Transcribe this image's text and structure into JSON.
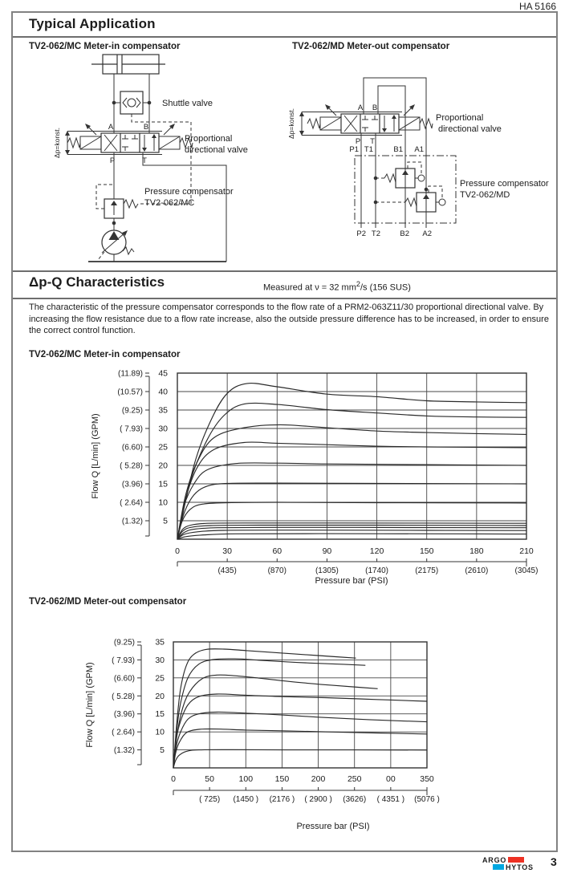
{
  "header": {
    "doc_number": "HA 5166"
  },
  "colors": {
    "logo_red": "#ee3124",
    "logo_blue": "#00a7e1",
    "frame_gray": "#828282"
  },
  "sections": {
    "typical": {
      "title": "Typical Application",
      "left": {
        "title": "TV2-062/MC Meter-in compensator",
        "labels": {
          "shuttle": "Shuttle valve",
          "prop1": "Proportional",
          "prop2": "directional valve",
          "comp1": "Pressure compensator",
          "comp2": "TV2-062/MC",
          "dp": "Δp=konst.",
          "a": "A",
          "b": "B",
          "p": "P",
          "t": "T"
        }
      },
      "right": {
        "title": "TV2-062/MD Meter-out compensator",
        "labels": {
          "prop1": "Proportional",
          "prop2": "directional valve",
          "comp1": "Pressure compensator",
          "comp2": "TV2-062/MD",
          "dp": "Δp=konst.",
          "a": "A",
          "b": "B",
          "p": "P",
          "t": "T",
          "p1": "P1",
          "t1": "T1",
          "b1": "B1",
          "a1": "A1",
          "p2": "P2",
          "t2": "T2",
          "b2": "B2",
          "a2": "A2"
        }
      }
    },
    "characteristics": {
      "title": "Δp-Q Characteristics",
      "measured_prefix": "Measured at ν = 32 mm",
      "measured_sup": "2",
      "measured_suffix": "/s (156 SUS)",
      "paragraph": "The characteristic of the pressure compensator corresponds to the flow rate of a PRM2-063Z11/30 proportional directional valve. By increasing the flow resistance due to a flow rate increase, also the outside pressure difference has to be increased, in order to ensure the correct control function."
    }
  },
  "chart_data": [
    {
      "type": "line",
      "title": "TV2-062/MC Meter-in compensator",
      "xlabel": "Pressure bar (PSI)",
      "ylabel": "Flow Q  [L/min]  (GPM)",
      "xlim": [
        0,
        210
      ],
      "ylim": [
        0,
        45
      ],
      "grid": true,
      "x_ticks": [
        {
          "v": 0,
          "label": "0"
        },
        {
          "v": 30,
          "label": "30"
        },
        {
          "v": 60,
          "label": "60"
        },
        {
          "v": 90,
          "label": "90"
        },
        {
          "v": 120,
          "label": "120"
        },
        {
          "v": 150,
          "label": "150"
        },
        {
          "v": 180,
          "label": "180"
        },
        {
          "v": 210,
          "label": "210"
        }
      ],
      "psi_ticks": [
        {
          "v": 30,
          "label": "(435)"
        },
        {
          "v": 60,
          "label": "(870)"
        },
        {
          "v": 90,
          "label": "(1305)"
        },
        {
          "v": 120,
          "label": "(1740)"
        },
        {
          "v": 150,
          "label": "(2175)"
        },
        {
          "v": 180,
          "label": "(2610)"
        },
        {
          "v": 210,
          "label": "(3045)"
        }
      ],
      "y_ticks": [
        {
          "v": 5,
          "label": "5",
          "gpm": "(1.32)"
        },
        {
          "v": 10,
          "label": "10",
          "gpm": "( 2.64)"
        },
        {
          "v": 15,
          "label": "15",
          "gpm": "(3.96)"
        },
        {
          "v": 20,
          "label": "20",
          "gpm": "( 5.28)"
        },
        {
          "v": 25,
          "label": "25",
          "gpm": "(6.60)"
        },
        {
          "v": 30,
          "label": "30",
          "gpm": "( 7.93)"
        },
        {
          "v": 35,
          "label": "35",
          "gpm": "(9.25)"
        },
        {
          "v": 40,
          "label": "40",
          "gpm": "(10.57)"
        },
        {
          "v": 45,
          "label": "45",
          "gpm": "(11.89)"
        }
      ],
      "series": [
        {
          "name": "curve-1",
          "points": [
            [
              0,
              0
            ],
            [
              10,
              20
            ],
            [
              20,
              32
            ],
            [
              30,
              39.5
            ],
            [
              42,
              42.2
            ],
            [
              60,
              41.3
            ],
            [
              90,
              39.3
            ],
            [
              120,
              38.6
            ],
            [
              150,
              37.5
            ],
            [
              180,
              37.2
            ],
            [
              210,
              37
            ]
          ]
        },
        {
          "name": "curve-2",
          "points": [
            [
              0,
              0
            ],
            [
              8,
              16
            ],
            [
              18,
              27
            ],
            [
              28,
              33.5
            ],
            [
              40,
              36.6
            ],
            [
              60,
              36.5
            ],
            [
              90,
              35.1
            ],
            [
              120,
              34.2
            ],
            [
              150,
              33.4
            ],
            [
              180,
              33.1
            ],
            [
              210,
              33
            ]
          ]
        },
        {
          "name": "curve-3",
          "points": [
            [
              0,
              0
            ],
            [
              5,
              12
            ],
            [
              12,
              21
            ],
            [
              22,
              27.5
            ],
            [
              40,
              30.2
            ],
            [
              62,
              31
            ],
            [
              90,
              30.2
            ],
            [
              120,
              29.3
            ],
            [
              150,
              28.9
            ],
            [
              180,
              28.6
            ],
            [
              210,
              28.4
            ]
          ]
        },
        {
          "name": "curve-4",
          "points": [
            [
              0,
              0
            ],
            [
              5,
              11
            ],
            [
              12,
              19.5
            ],
            [
              22,
              24.3
            ],
            [
              40,
              26.2
            ],
            [
              60,
              26
            ],
            [
              90,
              25.6
            ],
            [
              120,
              25.2
            ],
            [
              150,
              25
            ],
            [
              210,
              24.8
            ]
          ]
        },
        {
          "name": "curve-5",
          "points": [
            [
              0,
              0
            ],
            [
              4,
              9
            ],
            [
              10,
              15
            ],
            [
              18,
              18.8
            ],
            [
              35,
              20.5
            ],
            [
              60,
              20.6
            ],
            [
              90,
              20.4
            ],
            [
              150,
              20.2
            ],
            [
              210,
              20
            ]
          ]
        },
        {
          "name": "curve-6",
          "points": [
            [
              0,
              0
            ],
            [
              4,
              7
            ],
            [
              10,
              12
            ],
            [
              18,
              14.4
            ],
            [
              30,
              15.1
            ],
            [
              60,
              15.2
            ],
            [
              120,
              15.1
            ],
            [
              210,
              15
            ]
          ]
        },
        {
          "name": "curve-7",
          "points": [
            [
              0,
              0
            ],
            [
              3,
              5
            ],
            [
              8,
              8.2
            ],
            [
              15,
              9.5
            ],
            [
              30,
              9.9
            ],
            [
              60,
              10
            ],
            [
              120,
              9.9
            ],
            [
              210,
              9.8
            ]
          ]
        },
        {
          "name": "curve-8",
          "points": [
            [
              0,
              0
            ],
            [
              3,
              2.6
            ],
            [
              8,
              3.8
            ],
            [
              18,
              4.3
            ],
            [
              40,
              4.4
            ],
            [
              100,
              4.4
            ],
            [
              210,
              4.3
            ]
          ]
        },
        {
          "name": "curve-9",
          "points": [
            [
              0,
              0
            ],
            [
              3,
              2.1
            ],
            [
              8,
              3.2
            ],
            [
              20,
              3.7
            ],
            [
              50,
              3.8
            ],
            [
              120,
              3.8
            ],
            [
              210,
              3.7
            ]
          ]
        },
        {
          "name": "curve-10",
          "points": [
            [
              0,
              0
            ],
            [
              4,
              1.8
            ],
            [
              10,
              2.7
            ],
            [
              24,
              3.1
            ],
            [
              60,
              3.2
            ],
            [
              140,
              3.15
            ],
            [
              210,
              3.1
            ]
          ]
        },
        {
          "name": "curve-11",
          "points": [
            [
              0,
              0
            ],
            [
              4,
              1.3
            ],
            [
              12,
              2
            ],
            [
              28,
              2.4
            ],
            [
              70,
              2.45
            ],
            [
              150,
              2.4
            ],
            [
              210,
              2.35
            ]
          ]
        },
        {
          "name": "curve-12",
          "points": [
            [
              0,
              0
            ],
            [
              5,
              0.7
            ],
            [
              14,
              1.1
            ],
            [
              35,
              1.45
            ],
            [
              90,
              1.5
            ],
            [
              160,
              1.45
            ],
            [
              210,
              1.4
            ]
          ]
        }
      ]
    },
    {
      "type": "line",
      "title": "TV2-062/MD Meter-out compensator",
      "xlabel": "Pressure bar (PSI)",
      "ylabel": "Flow Q  [L/min]  (GPM)",
      "xlim": [
        0,
        350
      ],
      "ylim": [
        0,
        35
      ],
      "grid": true,
      "x_ticks": [
        {
          "v": 0,
          "label": "0"
        },
        {
          "v": 50,
          "label": "50"
        },
        {
          "v": 100,
          "label": "100"
        },
        {
          "v": 150,
          "label": "150"
        },
        {
          "v": 200,
          "label": "200"
        },
        {
          "v": 250,
          "label": "250"
        },
        {
          "v": 300,
          "label": "00"
        },
        {
          "v": 350,
          "label": "350"
        }
      ],
      "psi_ticks": [
        {
          "v": 50,
          "label": "( 725)"
        },
        {
          "v": 100,
          "label": "(1450 )"
        },
        {
          "v": 150,
          "label": "(2176 )"
        },
        {
          "v": 200,
          "label": "( 2900 )"
        },
        {
          "v": 250,
          "label": "(3626)"
        },
        {
          "v": 300,
          "label": "( 4351 )"
        },
        {
          "v": 350,
          "label": "(5076 )"
        }
      ],
      "y_ticks": [
        {
          "v": 5,
          "label": "5",
          "gpm": "(1.32)"
        },
        {
          "v": 10,
          "label": "10",
          "gpm": "( 2.64)"
        },
        {
          "v": 15,
          "label": "15",
          "gpm": "(3.96)"
        },
        {
          "v": 20,
          "label": "20",
          "gpm": "( 5.28)"
        },
        {
          "v": 25,
          "label": "25",
          "gpm": "(6.60)"
        },
        {
          "v": 30,
          "label": "30",
          "gpm": "( 7.93)"
        },
        {
          "v": 35,
          "label": "35",
          "gpm": "(9.25)"
        }
      ],
      "series": [
        {
          "name": "curve-1",
          "points": [
            [
              0,
              0
            ],
            [
              5,
              13
            ],
            [
              10,
              22
            ],
            [
              18,
              28.5
            ],
            [
              28,
              31.5
            ],
            [
              45,
              32.9
            ],
            [
              70,
              33
            ],
            [
              100,
              32.6
            ],
            [
              150,
              31.9
            ],
            [
              200,
              31.2
            ],
            [
              252,
              30.5
            ]
          ]
        },
        {
          "name": "curve-2",
          "points": [
            [
              0,
              0
            ],
            [
              5,
              11
            ],
            [
              10,
              18
            ],
            [
              20,
              25
            ],
            [
              35,
              28.8
            ],
            [
              55,
              30.1
            ],
            [
              85,
              30.3
            ],
            [
              120,
              29.9
            ],
            [
              170,
              29.3
            ],
            [
              220,
              28.9
            ],
            [
              265,
              28.5
            ]
          ]
        },
        {
          "name": "curve-3",
          "points": [
            [
              0,
              0
            ],
            [
              5,
              9
            ],
            [
              12,
              16
            ],
            [
              22,
              21
            ],
            [
              40,
              24.8
            ],
            [
              60,
              25.8
            ],
            [
              85,
              25.6
            ],
            [
              120,
              24.9
            ],
            [
              160,
              24
            ],
            [
              210,
              23.1
            ],
            [
              255,
              22.4
            ],
            [
              282,
              22
            ]
          ]
        },
        {
          "name": "curve-4",
          "points": [
            [
              0,
              0
            ],
            [
              4,
              8
            ],
            [
              10,
              13
            ],
            [
              20,
              17.5
            ],
            [
              35,
              19.8
            ],
            [
              60,
              20.5
            ],
            [
              100,
              20.2
            ],
            [
              150,
              19.8
            ],
            [
              210,
              19.5
            ],
            [
              280,
              19
            ],
            [
              350,
              18.5
            ]
          ]
        },
        {
          "name": "curve-5",
          "points": [
            [
              0,
              0
            ],
            [
              4,
              6
            ],
            [
              10,
              10
            ],
            [
              20,
              13.5
            ],
            [
              35,
              15
            ],
            [
              60,
              15.5
            ],
            [
              100,
              15.2
            ],
            [
              150,
              14.7
            ],
            [
              200,
              14.1
            ],
            [
              270,
              13.4
            ],
            [
              350,
              12.8
            ]
          ]
        },
        {
          "name": "curve-6",
          "points": [
            [
              0,
              0
            ],
            [
              3,
              4
            ],
            [
              8,
              7
            ],
            [
              18,
              9.8
            ],
            [
              35,
              10.7
            ],
            [
              60,
              10.8
            ],
            [
              100,
              10.5
            ],
            [
              150,
              10.3
            ],
            [
              210,
              10
            ],
            [
              280,
              9.7
            ],
            [
              350,
              9.4
            ]
          ]
        },
        {
          "name": "curve-7",
          "points": [
            [
              0,
              0
            ],
            [
              3,
              2
            ],
            [
              8,
              3.5
            ],
            [
              18,
              4.6
            ],
            [
              35,
              5
            ],
            [
              80,
              5.05
            ],
            [
              150,
              5
            ],
            [
              250,
              5
            ],
            [
              350,
              4.95
            ]
          ]
        }
      ]
    }
  ],
  "footer": {
    "brand_top": "ARGO",
    "brand_bottom": "HYTOS",
    "page_number": "3"
  }
}
